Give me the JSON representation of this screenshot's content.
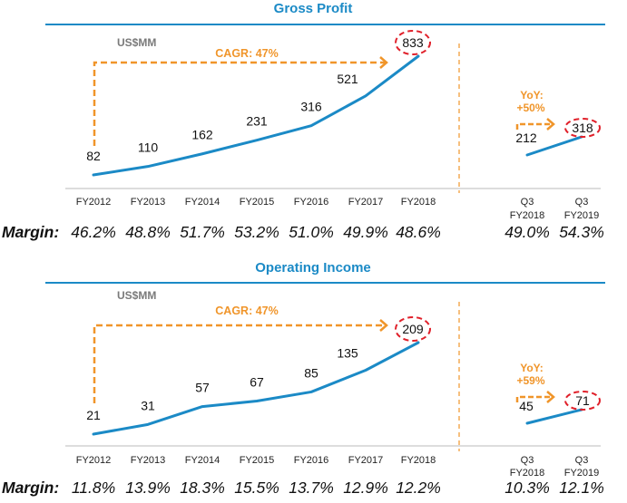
{
  "chart_data": [
    {
      "type": "line",
      "title": "Gross Profit",
      "unit_label": "US$MM",
      "annual": {
        "categories": [
          "FY2012",
          "FY2013",
          "FY2014",
          "FY2015",
          "FY2016",
          "FY2017",
          "FY2018"
        ],
        "values": [
          82,
          110,
          162,
          231,
          316,
          521,
          833
        ],
        "margins": [
          "46.2%",
          "48.8%",
          "51.7%",
          "53.2%",
          "51.0%",
          "49.9%",
          "48.6%"
        ],
        "highlighted_value": "833",
        "cagr_label": "CAGR: 47%"
      },
      "quarterly": {
        "categories": [
          [
            "Q3",
            "FY2018"
          ],
          [
            "Q3",
            "FY2019"
          ]
        ],
        "values": [
          212,
          318
        ],
        "margins": [
          "49.0%",
          "54.3%"
        ],
        "highlighted_value": "318",
        "yoy_label": [
          "YoY:",
          "+50%"
        ]
      },
      "margin_label": "Margin:",
      "colors": {
        "line": "#1b8ac6",
        "annotation": "#f0952a",
        "highlight": "#e0202a",
        "title": "#1b8ac6"
      }
    },
    {
      "type": "line",
      "title": "Operating Income",
      "unit_label": "US$MM",
      "annual": {
        "categories": [
          "FY2012",
          "FY2013",
          "FY2014",
          "FY2015",
          "FY2016",
          "FY2017",
          "FY2018"
        ],
        "values": [
          21,
          31,
          57,
          67,
          85,
          135,
          209
        ],
        "margins": [
          "11.8%",
          "13.9%",
          "18.3%",
          "15.5%",
          "13.7%",
          "12.9%",
          "12.2%"
        ],
        "highlighted_value": "209",
        "cagr_label": "CAGR: 47%"
      },
      "quarterly": {
        "categories": [
          [
            "Q3",
            "FY2018"
          ],
          [
            "Q3",
            "FY2019"
          ]
        ],
        "values": [
          45,
          71
        ],
        "margins": [
          "10.3%",
          "12.1%"
        ],
        "highlighted_value": "71",
        "yoy_label": [
          "YoY:",
          "+59%"
        ]
      },
      "margin_label": "Margin:",
      "colors": {
        "line": "#1b8ac6",
        "annotation": "#f0952a",
        "highlight": "#e0202a",
        "title": "#1b8ac6"
      }
    }
  ]
}
